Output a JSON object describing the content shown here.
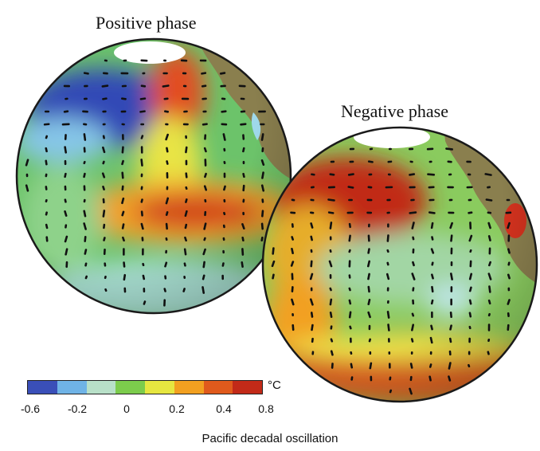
{
  "titles": {
    "positive": "Positive phase",
    "negative": "Negative phase"
  },
  "colorbar": {
    "unit": "°C",
    "ticks": [
      "-0.6",
      "-0.2",
      "0",
      "0.2",
      "0.4",
      "0.8"
    ],
    "colors": [
      "#3a4fb8",
      "#6fb3e6",
      "#b8e0c8",
      "#7ccc4c",
      "#e6e640",
      "#f2a020",
      "#e05a1c",
      "#c22a18"
    ]
  },
  "footer": "Pacific decadal oscillation",
  "palette": {
    "ocean_base": "#6cc36a",
    "land": "#8a7f4e",
    "ice": "#ffffff",
    "warm": "#d2321e",
    "hot": "#a31e14",
    "yellow": "#ece64a",
    "orange": "#f0a02c",
    "cool": "#2f4db4",
    "cyan": "#9fd8ea",
    "arrow": "#111111"
  }
}
